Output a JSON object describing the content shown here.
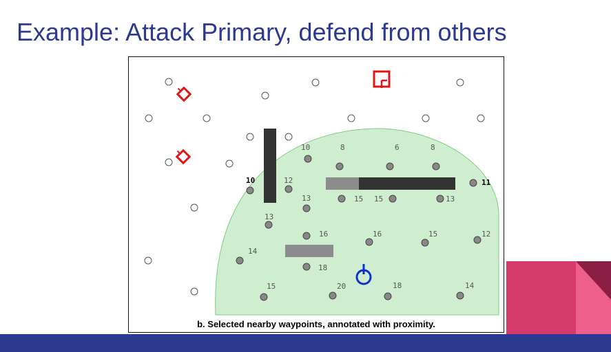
{
  "slide": {
    "title": "Example: Attack Primary, defend from others"
  },
  "figure": {
    "caption": "b. Selected nearby waypoints, annotated with proximity."
  },
  "colors": {
    "title": "#2b3a8f",
    "bottom_bar": "#2b3a8f",
    "deco_magenta": "#d63a6a",
    "deco_pink": "#ef5f8c",
    "deco_dark": "#8a1e44",
    "region_fill": "#cfeecf",
    "region_stroke": "#7bcf7b",
    "enemy_marker": "#e01515",
    "player_marker": "#1030d0"
  },
  "icons": {
    "enemy": "enemy-marker-icon",
    "primary": "primary-target-icon",
    "player": "player-marker-icon"
  },
  "waypoint_labels": {
    "l10a": "10",
    "l8a": "8",
    "l6": "6",
    "l8b": "8",
    "l10b": "10",
    "l12a": "12",
    "l11": "11",
    "l13a": "13",
    "l15a": "15",
    "l15b": "15",
    "l13b": "13",
    "l13c": "13",
    "l16a": "16",
    "l16b": "16",
    "l15c": "15",
    "l12b": "12",
    "l14a": "14",
    "l18a": "18",
    "l15d": "15",
    "l20": "20",
    "l18b": "18",
    "l14b": "14"
  }
}
